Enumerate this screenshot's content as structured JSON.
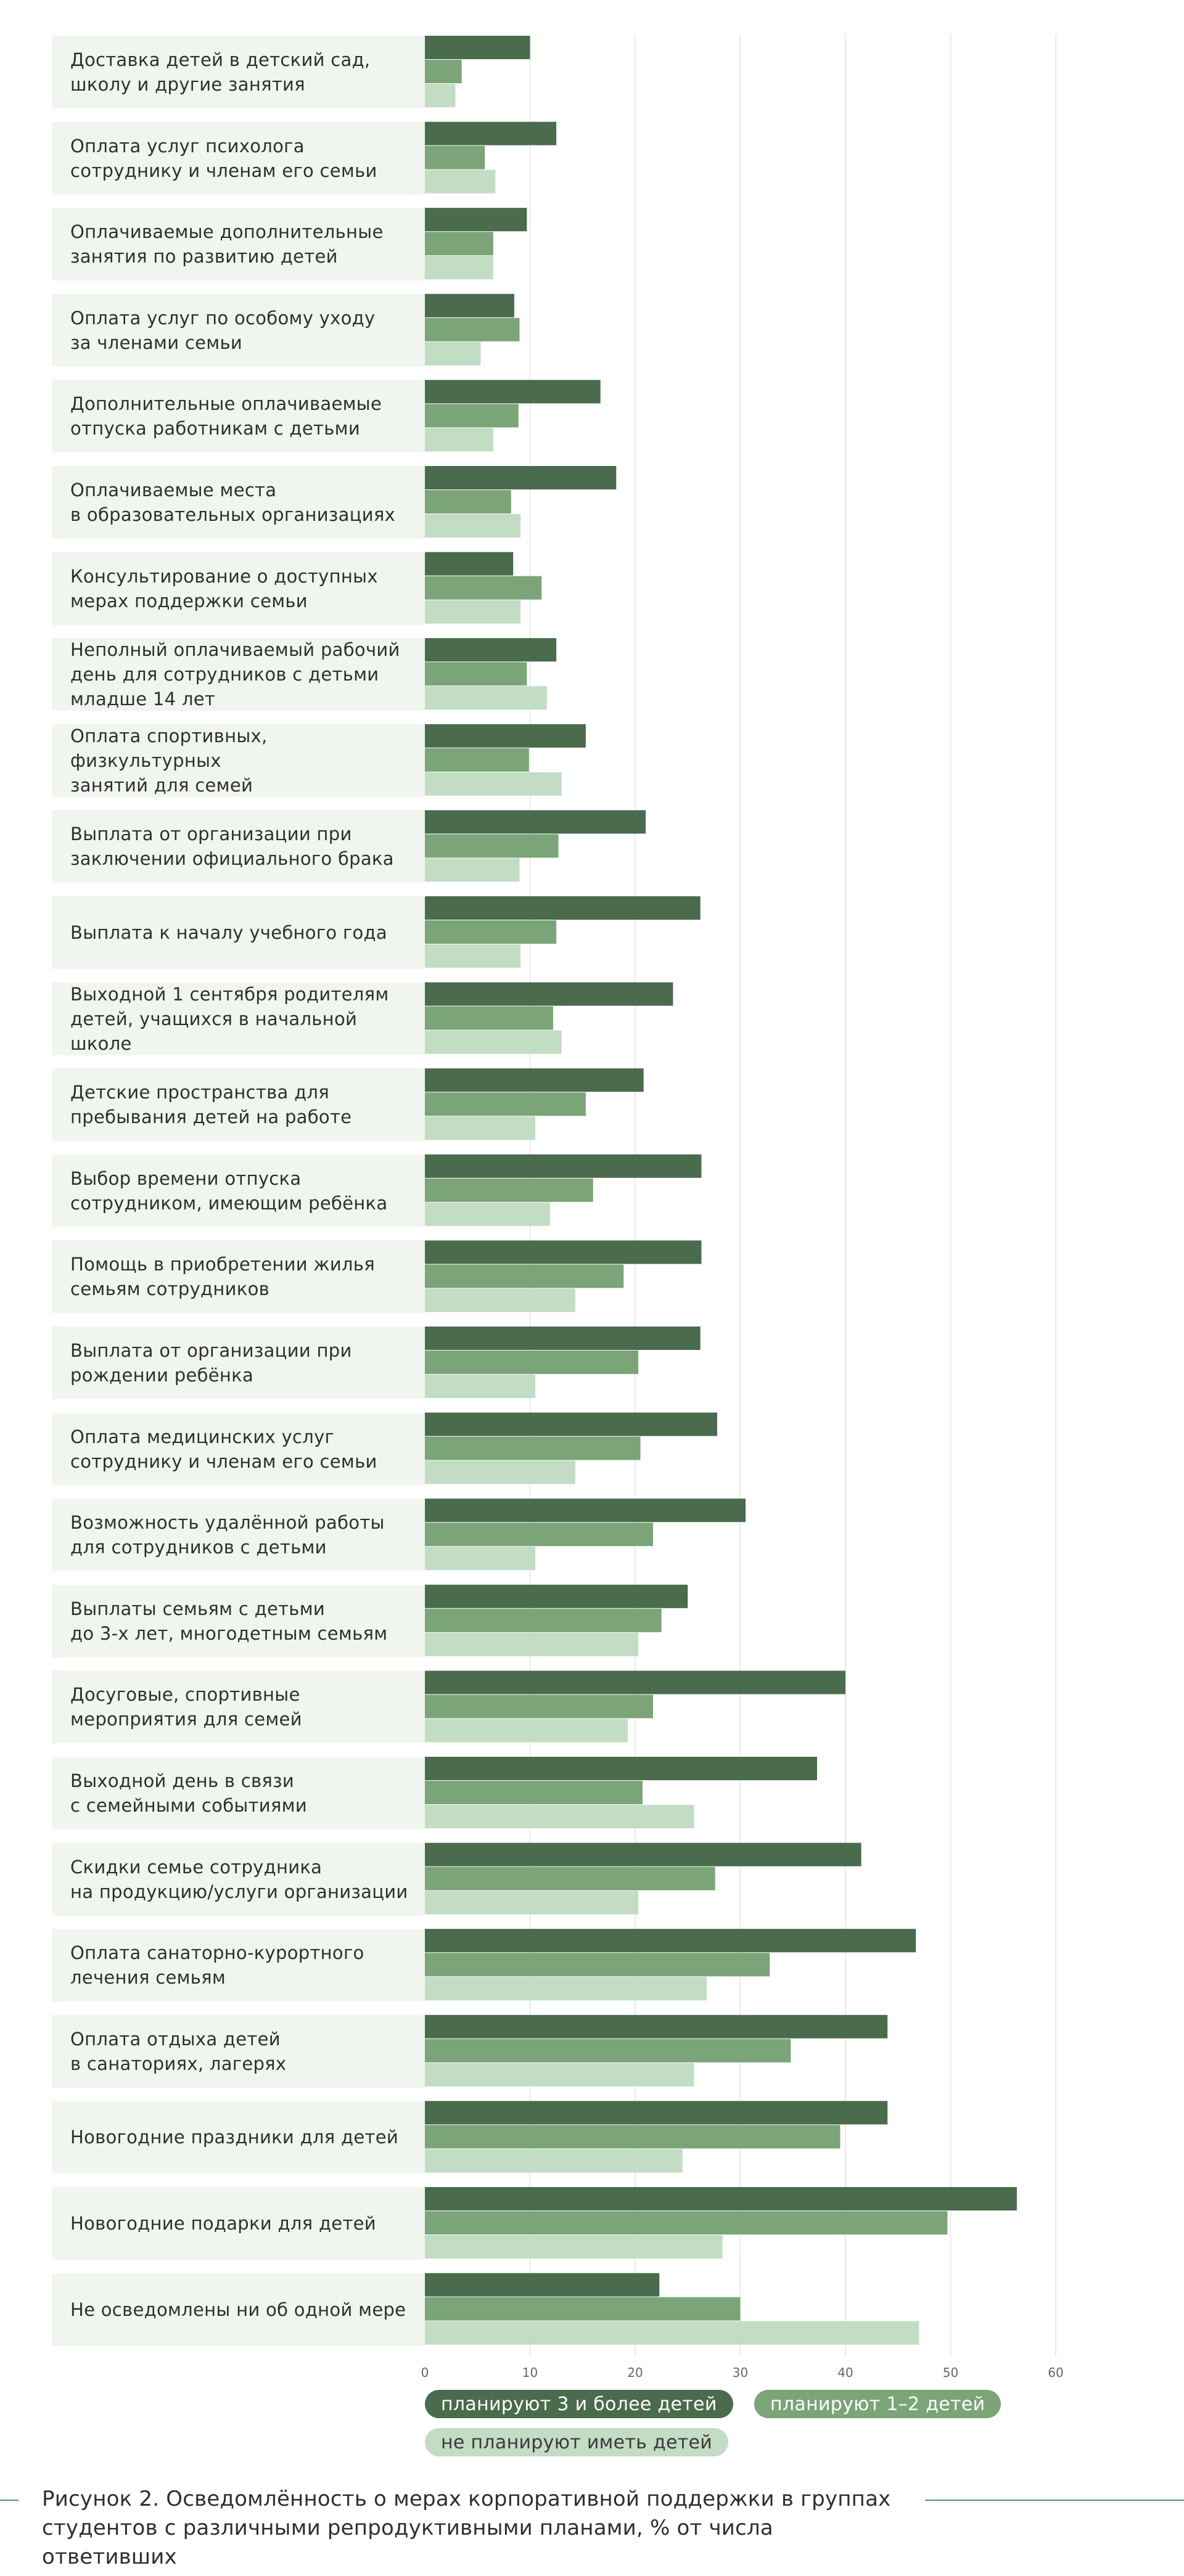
{
  "chart_data": {
    "type": "bar",
    "orientation": "horizontal",
    "categories": [
      "Доставка детей в детский сад,\nшколу и другие занятия",
      "Оплата услуг психолога\nсотруднику и членам его семьи",
      "Оплачиваемые дополнительные\nзанятия по развитию детей",
      "Оплата услуг по особому уходу\nза членами семьи",
      "Дополнительные оплачиваемые\nотпуска работникам с детьми",
      "Оплачиваемые места\nв образовательных организациях",
      "Консультирование о доступных\nмерах поддержки семьи",
      "Неполный оплачиваемый рабочий\nдень для сотрудников с детьми\nмладше 14 лет",
      "Оплата спортивных, физкультурных\nзанятий для семей",
      "Выплата от организации при\nзаключении официального брака",
      "Выплата к началу учебного года",
      "Выходной 1 сентября родителям\nдетей, учащихся в начальной школе",
      "Детские пространства для\nпребывания детей на работе",
      "Выбор времени отпуска\nсотрудником, имеющим ребёнка",
      "Помощь в приобретении жилья\nсемьям сотрудников",
      "Выплата от организации при\nрождении ребёнка",
      "Оплата медицинских услуг\nсотруднику и членам его семьи",
      "Возможность удалённой работы\nдля сотрудников с детьми",
      "Выплаты семьям с детьми\nдо 3-х лет, многодетным семьям",
      "Досуговые, спортивные\nмероприятия для семей",
      "Выходной день в связи\nс семейными событиями",
      "Скидки семье сотрудника\nна продукцию/услуги организации",
      "Оплата санаторно-курортного\nлечения семьям",
      "Оплата отдыха детей\nв санаториях, лагерях",
      "Новогодние праздники для детей",
      "Новогодние подарки для детей",
      "Не осведомлены ни об одной мере"
    ],
    "series": [
      {
        "name": "планируют 3 и более детей",
        "color": "#4a6b4c",
        "values": [
          10,
          12.5,
          9.7,
          8.5,
          16.7,
          18.2,
          8.4,
          12.5,
          15.3,
          21,
          26.2,
          23.6,
          20.8,
          26.3,
          26.3,
          26.2,
          27.8,
          30.5,
          25,
          40,
          37.3,
          41.5,
          46.7,
          44,
          44,
          56.3,
          22.3
        ]
      },
      {
        "name": "планируют 1–2 детей",
        "color": "#7ba478",
        "values": [
          3.5,
          5.7,
          6.5,
          9,
          8.9,
          8.2,
          11.1,
          9.7,
          9.9,
          12.7,
          12.5,
          12.2,
          15.3,
          16,
          18.9,
          20.3,
          20.5,
          21.7,
          22.5,
          21.7,
          20.7,
          27.6,
          32.8,
          34.8,
          39.5,
          49.7,
          30
        ]
      },
      {
        "name": "не планируют иметь детей",
        "color": "#c3dcc4",
        "values": [
          2.9,
          6.7,
          6.5,
          5.3,
          6.5,
          9.1,
          9.1,
          11.6,
          13,
          9,
          9.1,
          13,
          10.5,
          11.9,
          14.3,
          10.5,
          14.3,
          10.5,
          20.3,
          19.3,
          25.6,
          20.3,
          26.8,
          25.6,
          24.5,
          28.3,
          47
        ]
      }
    ],
    "x_ticks": [
      "0",
      "10",
      "20",
      "30",
      "40",
      "50",
      "60"
    ],
    "xlim": [
      0,
      60
    ],
    "grid": true,
    "legend_position": "bottom",
    "caption": "Рисунок 2. Осведомлённость о мерах корпоративной поддержки в группах\nстудентов с различными репродуктивными планами, % от числа ответивших"
  }
}
